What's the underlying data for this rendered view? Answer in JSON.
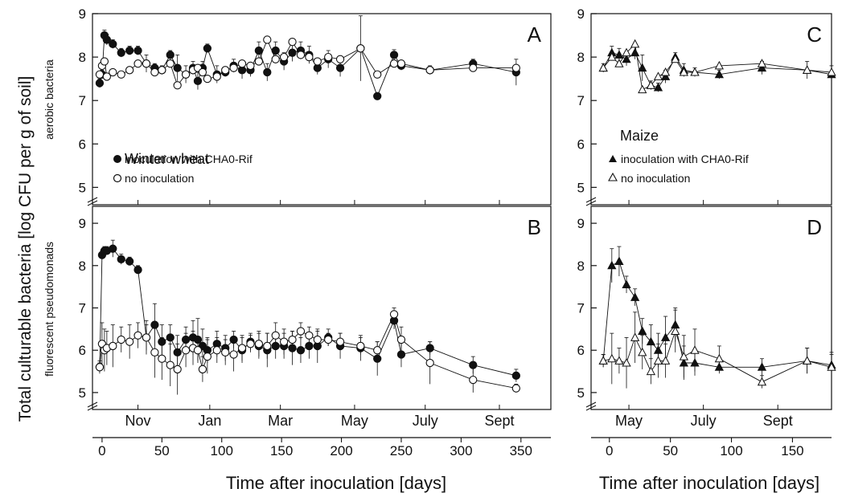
{
  "figure": {
    "ylabel": "Total culturable bacteria [log CFU per g of soil]",
    "x_axis_label_left": "Time after inoculation [days]",
    "x_axis_label_right": "Time after inoculation [days]"
  },
  "legends": {
    "wheat": {
      "title": "Winter wheat",
      "inoc": "inoculation with CHA0-Rif",
      "noinoc": "no inoculation"
    },
    "maize": {
      "title": "Maize",
      "inoc": "inoculation with CHA0-Rif",
      "noinoc": "no inoculation"
    }
  },
  "chart_data": [
    {
      "panel": "A",
      "type": "line",
      "crop": "Winter wheat",
      "ylabel": "aerobic bacteria",
      "xlim": [
        -8,
        375
      ],
      "ylim": [
        4.6,
        9
      ],
      "yticks": [
        5,
        6,
        7,
        8,
        9
      ],
      "xticks": [
        0,
        50,
        100,
        150,
        200,
        250,
        300,
        350
      ],
      "months": [
        {
          "label": "Nov",
          "day": 30
        },
        {
          "label": "Jan",
          "day": 90
        },
        {
          "label": "Mar",
          "day": 149
        },
        {
          "label": "May",
          "day": 211
        },
        {
          "label": "July",
          "day": 270
        },
        {
          "label": "Sept",
          "day": 332
        }
      ],
      "series": [
        {
          "name": "inoculation with CHA0-Rif",
          "marker": "filled-circle",
          "x": [
            -2,
            0,
            2,
            4,
            9,
            16,
            23,
            30,
            37,
            44,
            50,
            57,
            63,
            70,
            76,
            80,
            84,
            88,
            96,
            103,
            110,
            117,
            124,
            131,
            138,
            145,
            152,
            159,
            166,
            173,
            180,
            189,
            199,
            216,
            230,
            244,
            250,
            274,
            310,
            346
          ],
          "y": [
            7.4,
            7.6,
            8.5,
            8.4,
            8.3,
            8.1,
            8.15,
            8.15,
            7.85,
            7.75,
            7.7,
            8.05,
            7.75,
            7.6,
            7.75,
            7.45,
            7.75,
            8.2,
            7.6,
            7.65,
            7.8,
            7.7,
            7.7,
            8.15,
            7.65,
            8.15,
            7.9,
            8.1,
            8.15,
            8.05,
            7.75,
            7.95,
            7.75,
            8.2,
            7.1,
            8.05,
            7.8,
            7.7,
            7.85,
            7.65
          ],
          "err": [
            0.1,
            0.1,
            0.12,
            0.12,
            0.1,
            0.1,
            0.1,
            0.1,
            0.2,
            0.1,
            0.1,
            0.1,
            0.3,
            0.2,
            0.15,
            0.2,
            0.15,
            0.1,
            0.2,
            0.1,
            0.15,
            0.2,
            0.15,
            0.2,
            0.2,
            0.2,
            0.2,
            0.2,
            0.2,
            0.2,
            0.15,
            0.2,
            0.2,
            0.75,
            0.05,
            0.12,
            0.1,
            0.1,
            0.1,
            0.3
          ]
        },
        {
          "name": "no inoculation",
          "marker": "open-circle",
          "x": [
            -2,
            0,
            2,
            4,
            9,
            16,
            23,
            30,
            37,
            44,
            50,
            57,
            63,
            70,
            76,
            80,
            84,
            88,
            96,
            103,
            110,
            117,
            124,
            131,
            138,
            145,
            152,
            159,
            166,
            173,
            180,
            189,
            199,
            216,
            230,
            244,
            250,
            274,
            310,
            346
          ],
          "y": [
            7.6,
            7.8,
            7.9,
            7.55,
            7.65,
            7.6,
            7.7,
            7.85,
            7.85,
            7.65,
            7.7,
            7.85,
            7.35,
            7.6,
            7.7,
            7.75,
            7.65,
            7.5,
            7.55,
            7.7,
            7.75,
            7.85,
            7.8,
            7.9,
            8.4,
            7.95,
            8.0,
            8.35,
            8.05,
            8.0,
            7.9,
            8.0,
            7.95,
            8.2,
            7.6,
            7.85,
            7.85,
            7.7,
            7.75,
            7.75
          ]
        }
      ]
    },
    {
      "panel": "B",
      "type": "line",
      "crop": "Winter wheat",
      "ylabel": "fluorescent pseudomonads",
      "xlim": [
        -8,
        375
      ],
      "ylim": [
        4.6,
        9.4
      ],
      "yticks": [
        5,
        6,
        7,
        8,
        9
      ],
      "xticks": [
        0,
        50,
        100,
        150,
        200,
        250,
        300,
        350
      ],
      "months": [
        {
          "label": "Nov",
          "day": 30
        },
        {
          "label": "Jan",
          "day": 90
        },
        {
          "label": "Mar",
          "day": 149
        },
        {
          "label": "May",
          "day": 211
        },
        {
          "label": "July",
          "day": 270
        },
        {
          "label": "Sept",
          "day": 332
        }
      ],
      "series": [
        {
          "name": "inoculation with CHA0-Rif",
          "marker": "filled-circle",
          "x": [
            -2,
            0,
            2,
            4,
            9,
            16,
            23,
            30,
            37,
            44,
            50,
            57,
            63,
            70,
            76,
            80,
            84,
            88,
            96,
            103,
            110,
            117,
            124,
            131,
            138,
            145,
            152,
            159,
            166,
            173,
            180,
            189,
            199,
            216,
            230,
            244,
            250,
            274,
            310,
            346
          ],
          "y": [
            5.6,
            8.25,
            8.35,
            8.35,
            8.4,
            8.15,
            8.1,
            7.9,
            6.3,
            6.6,
            6.2,
            6.3,
            5.95,
            6.25,
            6.3,
            6.25,
            6.1,
            6.0,
            6.15,
            6.05,
            6.25,
            6.0,
            6.2,
            6.1,
            6.0,
            6.1,
            6.1,
            6.05,
            6.0,
            6.1,
            6.1,
            6.3,
            6.1,
            6.05,
            5.8,
            6.7,
            5.9,
            6.05,
            5.65,
            5.4
          ],
          "err": [
            0.1,
            0.1,
            0.1,
            0.1,
            0.2,
            0.12,
            0.1,
            0.1,
            0.3,
            0.5,
            0.4,
            0.3,
            0.4,
            0.3,
            0.4,
            0.5,
            0.4,
            0.3,
            0.3,
            0.3,
            0.2,
            0.3,
            0.2,
            0.3,
            0.4,
            0.3,
            0.3,
            0.4,
            0.3,
            0.3,
            0.4,
            0.2,
            0.3,
            0.3,
            0.4,
            0.2,
            0.3,
            0.15,
            0.2,
            0.15
          ]
        },
        {
          "name": "no inoculation",
          "marker": "open-circle",
          "x": [
            -2,
            0,
            2,
            4,
            9,
            16,
            23,
            30,
            37,
            44,
            50,
            57,
            63,
            70,
            76,
            80,
            84,
            88,
            96,
            103,
            110,
            117,
            124,
            131,
            138,
            145,
            152,
            159,
            166,
            173,
            180,
            189,
            199,
            216,
            230,
            244,
            250,
            274,
            310,
            346
          ],
          "y": [
            5.6,
            6.15,
            6.0,
            6.05,
            6.1,
            6.25,
            6.2,
            6.35,
            6.3,
            5.95,
            5.8,
            5.65,
            5.55,
            6.0,
            6.05,
            6.0,
            5.55,
            5.85,
            6.0,
            5.95,
            5.9,
            6.05,
            6.15,
            6.15,
            6.1,
            6.35,
            6.2,
            6.25,
            6.45,
            6.35,
            6.25,
            6.25,
            6.2,
            6.1,
            6.0,
            6.85,
            6.25,
            5.7,
            5.3,
            5.1
          ],
          "err": [
            0.15,
            0.5,
            0.5,
            0.4,
            0.5,
            0.3,
            0.4,
            0.3,
            0.4,
            0.6,
            0.5,
            0.5,
            0.6,
            0.4,
            0.4,
            0.3,
            0.3,
            0.4,
            0.3,
            0.3,
            0.4,
            0.3,
            0.2,
            0.3,
            0.3,
            0.3,
            0.3,
            0.2,
            0.2,
            0.2,
            0.2,
            0.15,
            0.2,
            0.2,
            0.2,
            0.15,
            0.3,
            0.5,
            0.3,
            0.1
          ]
        }
      ]
    },
    {
      "panel": "C",
      "type": "line",
      "crop": "Maize",
      "xlim": [
        -15,
        182
      ],
      "ylim": [
        4.6,
        9
      ],
      "yticks": [
        5,
        6,
        7,
        8,
        9
      ],
      "xticks": [
        0,
        50,
        100,
        150
      ],
      "months": [
        {
          "label": "May",
          "day": 16
        },
        {
          "label": "July",
          "day": 77
        },
        {
          "label": "Sept",
          "day": 138
        }
      ],
      "series": [
        {
          "name": "inoculation with CHA0-Rif",
          "marker": "filled-triangle",
          "x": [
            -5,
            2,
            8,
            14,
            21,
            27,
            34,
            40,
            46,
            54,
            61,
            70,
            90,
            125,
            162,
            182
          ],
          "y": [
            7.75,
            8.1,
            8.05,
            7.95,
            8.1,
            7.75,
            7.35,
            7.3,
            7.55,
            8.0,
            7.7,
            7.65,
            7.6,
            7.75,
            7.7,
            7.6
          ],
          "err": [
            0.1,
            0.15,
            0.15,
            0.15,
            0.15,
            0.3,
            0.1,
            0.1,
            0.15,
            0.1,
            0.15,
            0.1,
            0.1,
            0.15,
            0.2,
            0.2
          ]
        },
        {
          "name": "no inoculation",
          "marker": "open-triangle",
          "x": [
            -5,
            2,
            8,
            14,
            21,
            27,
            34,
            40,
            46,
            54,
            61,
            70,
            90,
            125,
            162,
            182
          ],
          "y": [
            7.75,
            8.0,
            7.85,
            8.1,
            8.3,
            7.25,
            7.35,
            7.55,
            7.65,
            7.95,
            7.65,
            7.65,
            7.8,
            7.85,
            7.7,
            7.65
          ]
        }
      ]
    },
    {
      "panel": "D",
      "type": "line",
      "crop": "Maize",
      "xlim": [
        -15,
        182
      ],
      "ylim": [
        4.6,
        9.4
      ],
      "yticks": [
        5,
        6,
        7,
        8,
        9
      ],
      "xticks": [
        0,
        50,
        100,
        150
      ],
      "months": [
        {
          "label": "May",
          "day": 16
        },
        {
          "label": "July",
          "day": 77
        },
        {
          "label": "Sept",
          "day": 138
        }
      ],
      "series": [
        {
          "name": "inoculation with CHA0-Rif",
          "marker": "filled-triangle",
          "x": [
            -5,
            2,
            8,
            14,
            21,
            27,
            34,
            40,
            46,
            54,
            61,
            70,
            90,
            125,
            162,
            182
          ],
          "y": [
            5.75,
            8.0,
            8.1,
            7.55,
            7.25,
            6.45,
            6.2,
            6.0,
            6.3,
            6.6,
            5.7,
            5.7,
            5.6,
            5.6,
            5.75,
            5.65
          ],
          "err": [
            0.15,
            0.4,
            0.35,
            0.2,
            0.2,
            0.3,
            0.4,
            0.4,
            0.5,
            0.4,
            0.4,
            0.3,
            0.15,
            0.2,
            0.3,
            0.3
          ]
        },
        {
          "name": "no inoculation",
          "marker": "open-triangle",
          "x": [
            -5,
            2,
            8,
            14,
            21,
            27,
            34,
            40,
            46,
            54,
            61,
            70,
            90,
            125,
            162,
            182
          ],
          "y": [
            5.75,
            5.8,
            5.75,
            5.7,
            6.3,
            5.95,
            5.5,
            5.75,
            5.75,
            6.45,
            5.85,
            6.0,
            5.8,
            5.25,
            5.75,
            5.6
          ],
          "err": [
            0.15,
            0.6,
            0.3,
            0.6,
            0.6,
            0.4,
            0.3,
            0.4,
            0.4,
            0.5,
            0.5,
            0.5,
            0.3,
            0.15,
            0.3,
            0.3
          ]
        }
      ]
    }
  ]
}
